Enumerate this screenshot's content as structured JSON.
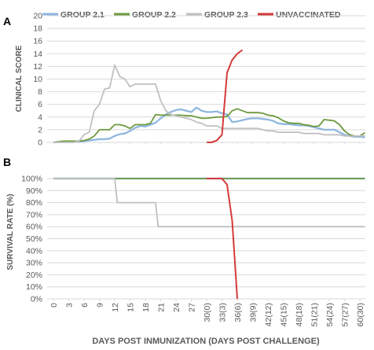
{
  "figure_title": "",
  "colors": {
    "group_2_1": "#8DB6E0",
    "group_2_1_shadow": "#5B8FC8",
    "group_2_2": "#6E9A3F",
    "group_2_3": "#C0C0C0",
    "unvaccinated": "#D53A3A",
    "grid": "#D9D9D9",
    "axis_text": "#595959"
  },
  "chart_data": [
    {
      "panel_label": "A",
      "type": "line",
      "title": "",
      "xlabel": "",
      "ylabel": "CLINICAL SCORE",
      "ylim": [
        0,
        20
      ],
      "yticks": [
        "0",
        "2",
        "4",
        "6",
        "8",
        "10",
        "12",
        "14",
        "16",
        "18",
        "20"
      ],
      "xlim": [
        0,
        60
      ],
      "grid": "horizontal",
      "legend": "top",
      "series": [
        {
          "name": "GROUP 2.1",
          "key": "group_2_1",
          "x": [
            0,
            2,
            4,
            5,
            6,
            7,
            8,
            9,
            10,
            11,
            12,
            13,
            14,
            15,
            16,
            17,
            18,
            19,
            20,
            21,
            22,
            23,
            24,
            25,
            26,
            27,
            28,
            29,
            30,
            31,
            32,
            33,
            34,
            35,
            36,
            37,
            38,
            39,
            40,
            41,
            42,
            43,
            44,
            45,
            46,
            47,
            48,
            49,
            50,
            51,
            52,
            53,
            54,
            55,
            56,
            57,
            58,
            59,
            60,
            61
          ],
          "y": [
            0,
            0.1,
            0.1,
            0.1,
            0.2,
            0.3,
            0.4,
            0.5,
            0.5,
            0.6,
            1.0,
            1.3,
            1.4,
            1.8,
            2.3,
            2.6,
            2.5,
            2.8,
            3.1,
            3.8,
            4.4,
            4.8,
            5.1,
            5.2,
            5.0,
            4.8,
            5.5,
            5.0,
            4.8,
            4.8,
            4.9,
            4.6,
            4.4,
            3.2,
            3.3,
            3.5,
            3.7,
            3.8,
            3.8,
            3.7,
            3.6,
            3.4,
            3.0,
            2.9,
            2.9,
            2.8,
            2.7,
            2.7,
            2.6,
            2.4,
            2.2,
            2.0,
            2.0,
            2.0,
            1.6,
            1.2,
            1.0,
            0.9,
            0.9,
            0.8
          ]
        },
        {
          "name": "GROUP 2.2",
          "key": "group_2_2",
          "x": [
            0,
            2,
            4,
            5,
            6,
            7,
            8,
            9,
            10,
            11,
            12,
            13,
            14,
            15,
            16,
            17,
            18,
            19,
            20,
            21,
            22,
            23,
            24,
            25,
            26,
            27,
            28,
            29,
            30,
            31,
            32,
            33,
            34,
            35,
            36,
            37,
            38,
            39,
            40,
            41,
            42,
            43,
            44,
            45,
            46,
            47,
            48,
            49,
            50,
            51,
            52,
            53,
            54,
            55,
            56,
            57,
            58,
            59,
            60,
            61
          ],
          "y": [
            0,
            0.2,
            0.2,
            0.2,
            0.3,
            0.5,
            1.0,
            2.0,
            2.0,
            2.0,
            2.8,
            2.8,
            2.6,
            2.2,
            2.8,
            2.8,
            2.8,
            3.0,
            4.4,
            4.3,
            4.3,
            4.3,
            4.3,
            4.3,
            4.2,
            4.2,
            4.0,
            3.8,
            3.8,
            3.9,
            4.0,
            4.0,
            4.1,
            5.0,
            5.3,
            5.0,
            4.7,
            4.7,
            4.7,
            4.6,
            4.3,
            4.2,
            3.9,
            3.4,
            3.1,
            3.0,
            3.0,
            2.8,
            2.7,
            2.5,
            2.6,
            3.6,
            3.5,
            3.4,
            2.8,
            1.8,
            1.2,
            1.0,
            1.0,
            1.5
          ]
        },
        {
          "name": "GROUP 2.3",
          "key": "group_2_3",
          "x": [
            0,
            2,
            4,
            5,
            6,
            7,
            8,
            9,
            10,
            11,
            12,
            13,
            14,
            15,
            16,
            17,
            18,
            19,
            20,
            21,
            22,
            23,
            24,
            25,
            26,
            27,
            28,
            29,
            30,
            31,
            32,
            33,
            34,
            35,
            36,
            37,
            38,
            39,
            40,
            41,
            42,
            43,
            44,
            45,
            46,
            47,
            48,
            49,
            50,
            51,
            52,
            53,
            54,
            55,
            56,
            57,
            58,
            59,
            60,
            61
          ],
          "y": [
            0,
            0,
            0,
            0.2,
            1.2,
            1.6,
            5.0,
            6.0,
            8.4,
            8.6,
            12.2,
            10.4,
            10.0,
            8.8,
            9.2,
            9.2,
            9.2,
            9.2,
            9.2,
            6.6,
            5.0,
            4.4,
            4.2,
            4.0,
            3.8,
            3.6,
            3.2,
            3.0,
            2.6,
            2.6,
            2.6,
            2.2,
            2.2,
            2.2,
            2.2,
            2.2,
            2.2,
            2.2,
            2.2,
            2.0,
            1.8,
            1.8,
            1.6,
            1.6,
            1.6,
            1.6,
            1.6,
            1.4,
            1.4,
            1.4,
            1.4,
            1.2,
            1.2,
            1.2,
            1.2,
            1.0,
            1.0,
            1.0,
            1.0,
            1.0
          ]
        },
        {
          "name": "UNVACCINATED",
          "key": "unvaccinated",
          "x": [
            30,
            31,
            32,
            33,
            34,
            35,
            36,
            37
          ],
          "y": [
            0,
            0,
            0.3,
            1.2,
            11.0,
            13.0,
            14.0,
            14.6
          ]
        }
      ]
    },
    {
      "panel_label": "B",
      "type": "line",
      "title": "",
      "xlabel": "DAYS POST INMUNIZATION (DAYS POST CHALLENGE)",
      "ylabel": "SURVIVAL RATE (%)",
      "ylim": [
        0,
        100
      ],
      "yticks": [
        "0%",
        "10%",
        "20%",
        "30%",
        "40%",
        "50%",
        "60%",
        "70%",
        "80%",
        "90%",
        "100%"
      ],
      "xlim": [
        0,
        60
      ],
      "xtick_values": [
        0,
        3,
        6,
        9,
        12,
        15,
        18,
        21,
        24,
        27,
        30,
        33,
        36,
        39,
        42,
        45,
        48,
        51,
        54,
        57,
        60
      ],
      "xticks": [
        "0",
        "3",
        "6",
        "9",
        "12",
        "15",
        "18",
        "21",
        "24",
        "27",
        "30(0)",
        "33(3)",
        "36(6)",
        "39(9)",
        "42(12)",
        "45(15)",
        "48(18)",
        "51(21)",
        "54(24)",
        "57(27)",
        "60(30)"
      ],
      "grid": "horizontal",
      "series": [
        {
          "key": "group_2_1",
          "x": [
            0,
            61
          ],
          "y": [
            100,
            100
          ]
        },
        {
          "key": "group_2_2",
          "x": [
            0,
            61
          ],
          "y": [
            100,
            100
          ]
        },
        {
          "key": "group_2_3",
          "x": [
            0,
            12,
            12.5,
            20,
            20.5,
            61
          ],
          "y": [
            100,
            100,
            80,
            80,
            60,
            60
          ]
        },
        {
          "key": "unvaccinated",
          "x": [
            30,
            33,
            34,
            35,
            36
          ],
          "y": [
            100,
            100,
            95,
            65,
            0
          ]
        }
      ]
    }
  ]
}
